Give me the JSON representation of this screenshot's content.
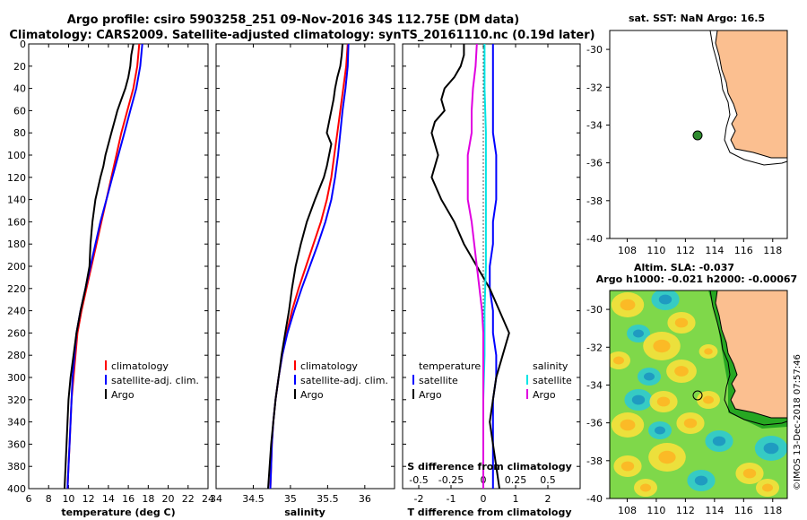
{
  "header": {
    "line1": "Argo profile: csiro 5903258_251 09-Nov-2016 34S 112.75E (DM data)",
    "line2": "Climatology: CARS2009. Satellite-adjusted climatology: synTS_20161110.nc (0.19d later)"
  },
  "colors": {
    "climatology": "#ff0000",
    "satellite": "#0000ff",
    "argo": "#000000",
    "s_satellite": "#00e5e5",
    "s_argo": "#e000e0",
    "land": "#fbbf90"
  },
  "legend_ts": {
    "climatology": "climatology",
    "satellite": "satellite-adj. clim.",
    "argo": "Argo"
  },
  "legend_diff": {
    "t_head": "temperature",
    "s_head": "salinity",
    "t_sat": "satellite",
    "t_argo": "Argo",
    "s_sat": "satellite",
    "s_argo": "Argo"
  },
  "map_sst": {
    "title": "sat. SST: NaN Argo: 16.5",
    "lat_ticks": [
      "-30",
      "-32",
      "-34",
      "-36",
      "-38",
      "-40"
    ],
    "lon_ticks": [
      "108",
      "110",
      "112",
      "114",
      "116",
      "118"
    ]
  },
  "map_sla": {
    "title1": "Altim. SLA: -0.037",
    "title2": "Argo h1000: -0.021 h2000: -0.00067",
    "lat_ticks": [
      "-30",
      "-32",
      "-34",
      "-36",
      "-38",
      "-40"
    ],
    "lon_ticks": [
      "108",
      "110",
      "112",
      "114",
      "116",
      "118"
    ]
  },
  "stamp": "©IMOS 13-Dec-2018 07:57:46",
  "chart_data": [
    {
      "type": "line",
      "title": "",
      "xlabel": "temperature (deg C)",
      "ylabel": "",
      "xlim": [
        6,
        24
      ],
      "ylim": [
        400,
        0
      ],
      "x_ticks": [
        "6",
        "8",
        "10",
        "12",
        "14",
        "16",
        "18",
        "20",
        "22",
        "24"
      ],
      "y_ticks": [
        "0",
        "20",
        "40",
        "60",
        "80",
        "100",
        "120",
        "140",
        "160",
        "180",
        "200",
        "220",
        "240",
        "260",
        "280",
        "300",
        "320",
        "340",
        "360",
        "380",
        "400"
      ],
      "series": [
        {
          "name": "climatology",
          "depth": [
            0,
            20,
            40,
            60,
            80,
            100,
            120,
            140,
            160,
            180,
            200,
            220,
            240,
            260,
            280,
            300,
            320,
            340,
            360,
            380,
            400
          ],
          "values": [
            17.1,
            16.9,
            16.5,
            15.9,
            15.3,
            14.8,
            14.3,
            13.8,
            13.3,
            12.8,
            12.3,
            11.8,
            11.3,
            10.9,
            10.7,
            10.5,
            10.3,
            10.2,
            10.1,
            10.0,
            9.9
          ]
        },
        {
          "name": "satellite-adj. clim.",
          "depth": [
            0,
            20,
            40,
            60,
            80,
            100,
            120,
            140,
            160,
            180,
            200,
            220,
            240,
            260,
            280,
            300,
            320,
            340,
            360,
            380,
            400
          ],
          "values": [
            17.4,
            17.2,
            16.8,
            16.2,
            15.6,
            15.0,
            14.4,
            13.8,
            13.2,
            12.7,
            12.2,
            11.7,
            11.2,
            10.8,
            10.6,
            10.4,
            10.3,
            10.2,
            10.1,
            10.0,
            9.9
          ]
        },
        {
          "name": "Argo",
          "depth": [
            0,
            10,
            20,
            30,
            40,
            50,
            60,
            70,
            80,
            90,
            100,
            110,
            120,
            140,
            160,
            180,
            200,
            220,
            240,
            260,
            280,
            300,
            320,
            340,
            360,
            380,
            400
          ],
          "values": [
            16.5,
            16.3,
            16.2,
            16.0,
            15.7,
            15.3,
            14.9,
            14.6,
            14.3,
            14.0,
            13.7,
            13.5,
            13.2,
            12.7,
            12.4,
            12.2,
            12.1,
            11.7,
            11.2,
            10.8,
            10.5,
            10.2,
            10.0,
            9.9,
            9.8,
            9.7,
            9.6
          ]
        }
      ],
      "legend": "lower-right"
    },
    {
      "type": "line",
      "title": "",
      "xlabel": "salinity",
      "ylabel": "",
      "xlim": [
        34,
        36.4
      ],
      "ylim": [
        400,
        0
      ],
      "x_ticks": [
        "34",
        "34.5",
        "35",
        "35.5",
        "36"
      ],
      "series": [
        {
          "name": "climatology",
          "depth": [
            0,
            20,
            40,
            60,
            80,
            100,
            120,
            140,
            160,
            180,
            200,
            220,
            240,
            260,
            280,
            300,
            320,
            340,
            360,
            380,
            400
          ],
          "values": [
            35.77,
            35.75,
            35.71,
            35.67,
            35.63,
            35.59,
            35.55,
            35.49,
            35.41,
            35.31,
            35.21,
            35.11,
            35.02,
            34.95,
            34.89,
            34.84,
            34.8,
            34.77,
            34.75,
            34.74,
            34.73
          ]
        },
        {
          "name": "satellite-adj. clim.",
          "depth": [
            0,
            20,
            40,
            60,
            80,
            100,
            120,
            140,
            160,
            180,
            200,
            220,
            240,
            260,
            280,
            300,
            320,
            340,
            360,
            380,
            400
          ],
          "values": [
            35.78,
            35.77,
            35.74,
            35.7,
            35.67,
            35.64,
            35.6,
            35.55,
            35.47,
            35.37,
            35.26,
            35.15,
            35.05,
            34.96,
            34.89,
            34.84,
            34.8,
            34.77,
            34.75,
            34.74,
            34.73
          ]
        },
        {
          "name": "Argo",
          "depth": [
            0,
            10,
            20,
            30,
            40,
            50,
            60,
            70,
            80,
            90,
            100,
            110,
            120,
            140,
            160,
            180,
            200,
            220,
            240,
            260,
            280,
            300,
            320,
            340,
            360,
            380,
            400
          ],
          "values": [
            35.7,
            35.69,
            35.67,
            35.63,
            35.6,
            35.58,
            35.55,
            35.52,
            35.49,
            35.55,
            35.52,
            35.49,
            35.45,
            35.33,
            35.22,
            35.14,
            35.07,
            35.02,
            34.98,
            34.93,
            34.88,
            34.84,
            34.8,
            34.77,
            34.74,
            34.72,
            34.7
          ]
        }
      ],
      "legend": "lower-right"
    },
    {
      "type": "line",
      "title": "",
      "xlabel": "T difference from climatology",
      "x2label": "S difference from climatology",
      "xlim": [
        -2.5,
        3.0
      ],
      "x_ticks": [
        "-2",
        "-1",
        "0",
        "1",
        "2"
      ],
      "x2_ticks": [
        "-0.5",
        "-0.25",
        "0",
        "0.25",
        "0.5"
      ],
      "ylim": [
        400,
        0
      ],
      "series": [
        {
          "name": "temperature satellite",
          "depth": [
            0,
            20,
            40,
            60,
            80,
            100,
            120,
            140,
            160,
            180,
            200,
            220,
            240,
            260,
            280,
            300,
            320,
            340,
            360,
            380,
            400
          ],
          "values": [
            0.3,
            0.3,
            0.3,
            0.3,
            0.3,
            0.4,
            0.4,
            0.4,
            0.3,
            0.3,
            0.2,
            0.2,
            0.3,
            0.3,
            0.4,
            0.4,
            0.3,
            0.3,
            0.3,
            0.3,
            0.3
          ]
        },
        {
          "name": "temperature Argo",
          "depth": [
            0,
            10,
            20,
            30,
            40,
            50,
            60,
            70,
            80,
            90,
            100,
            110,
            120,
            140,
            160,
            180,
            200,
            220,
            240,
            260,
            280,
            300,
            320,
            340,
            360,
            380,
            400
          ],
          "values": [
            -0.6,
            -0.6,
            -0.7,
            -0.9,
            -1.2,
            -1.3,
            -1.2,
            -1.5,
            -1.6,
            -1.5,
            -1.4,
            -1.5,
            -1.6,
            -1.3,
            -0.9,
            -0.6,
            -0.2,
            0.2,
            0.5,
            0.8,
            0.6,
            0.4,
            0.3,
            0.2,
            0.3,
            0.4,
            0.5
          ]
        },
        {
          "name": "salinity satellite",
          "depth": [
            0,
            40,
            80,
            120,
            160,
            200,
            240,
            280,
            320,
            360,
            400
          ],
          "values": [
            0.01,
            0.01,
            0.02,
            0.02,
            0.02,
            0.02,
            0.01,
            0.01,
            0.0,
            0.0,
            0.0
          ]
        },
        {
          "name": "salinity Argo",
          "depth": [
            0,
            20,
            40,
            60,
            80,
            100,
            120,
            140,
            160,
            180,
            200,
            220,
            240,
            260,
            280,
            300,
            320,
            340,
            360,
            380,
            400
          ],
          "values": [
            -0.05,
            -0.06,
            -0.08,
            -0.09,
            -0.09,
            -0.12,
            -0.12,
            -0.12,
            -0.09,
            -0.07,
            -0.05,
            -0.03,
            -0.01,
            0.0,
            0.0,
            0.0,
            0.0,
            0.0,
            0.0,
            0.0,
            0.0
          ]
        }
      ],
      "legend": "lower-center"
    }
  ]
}
